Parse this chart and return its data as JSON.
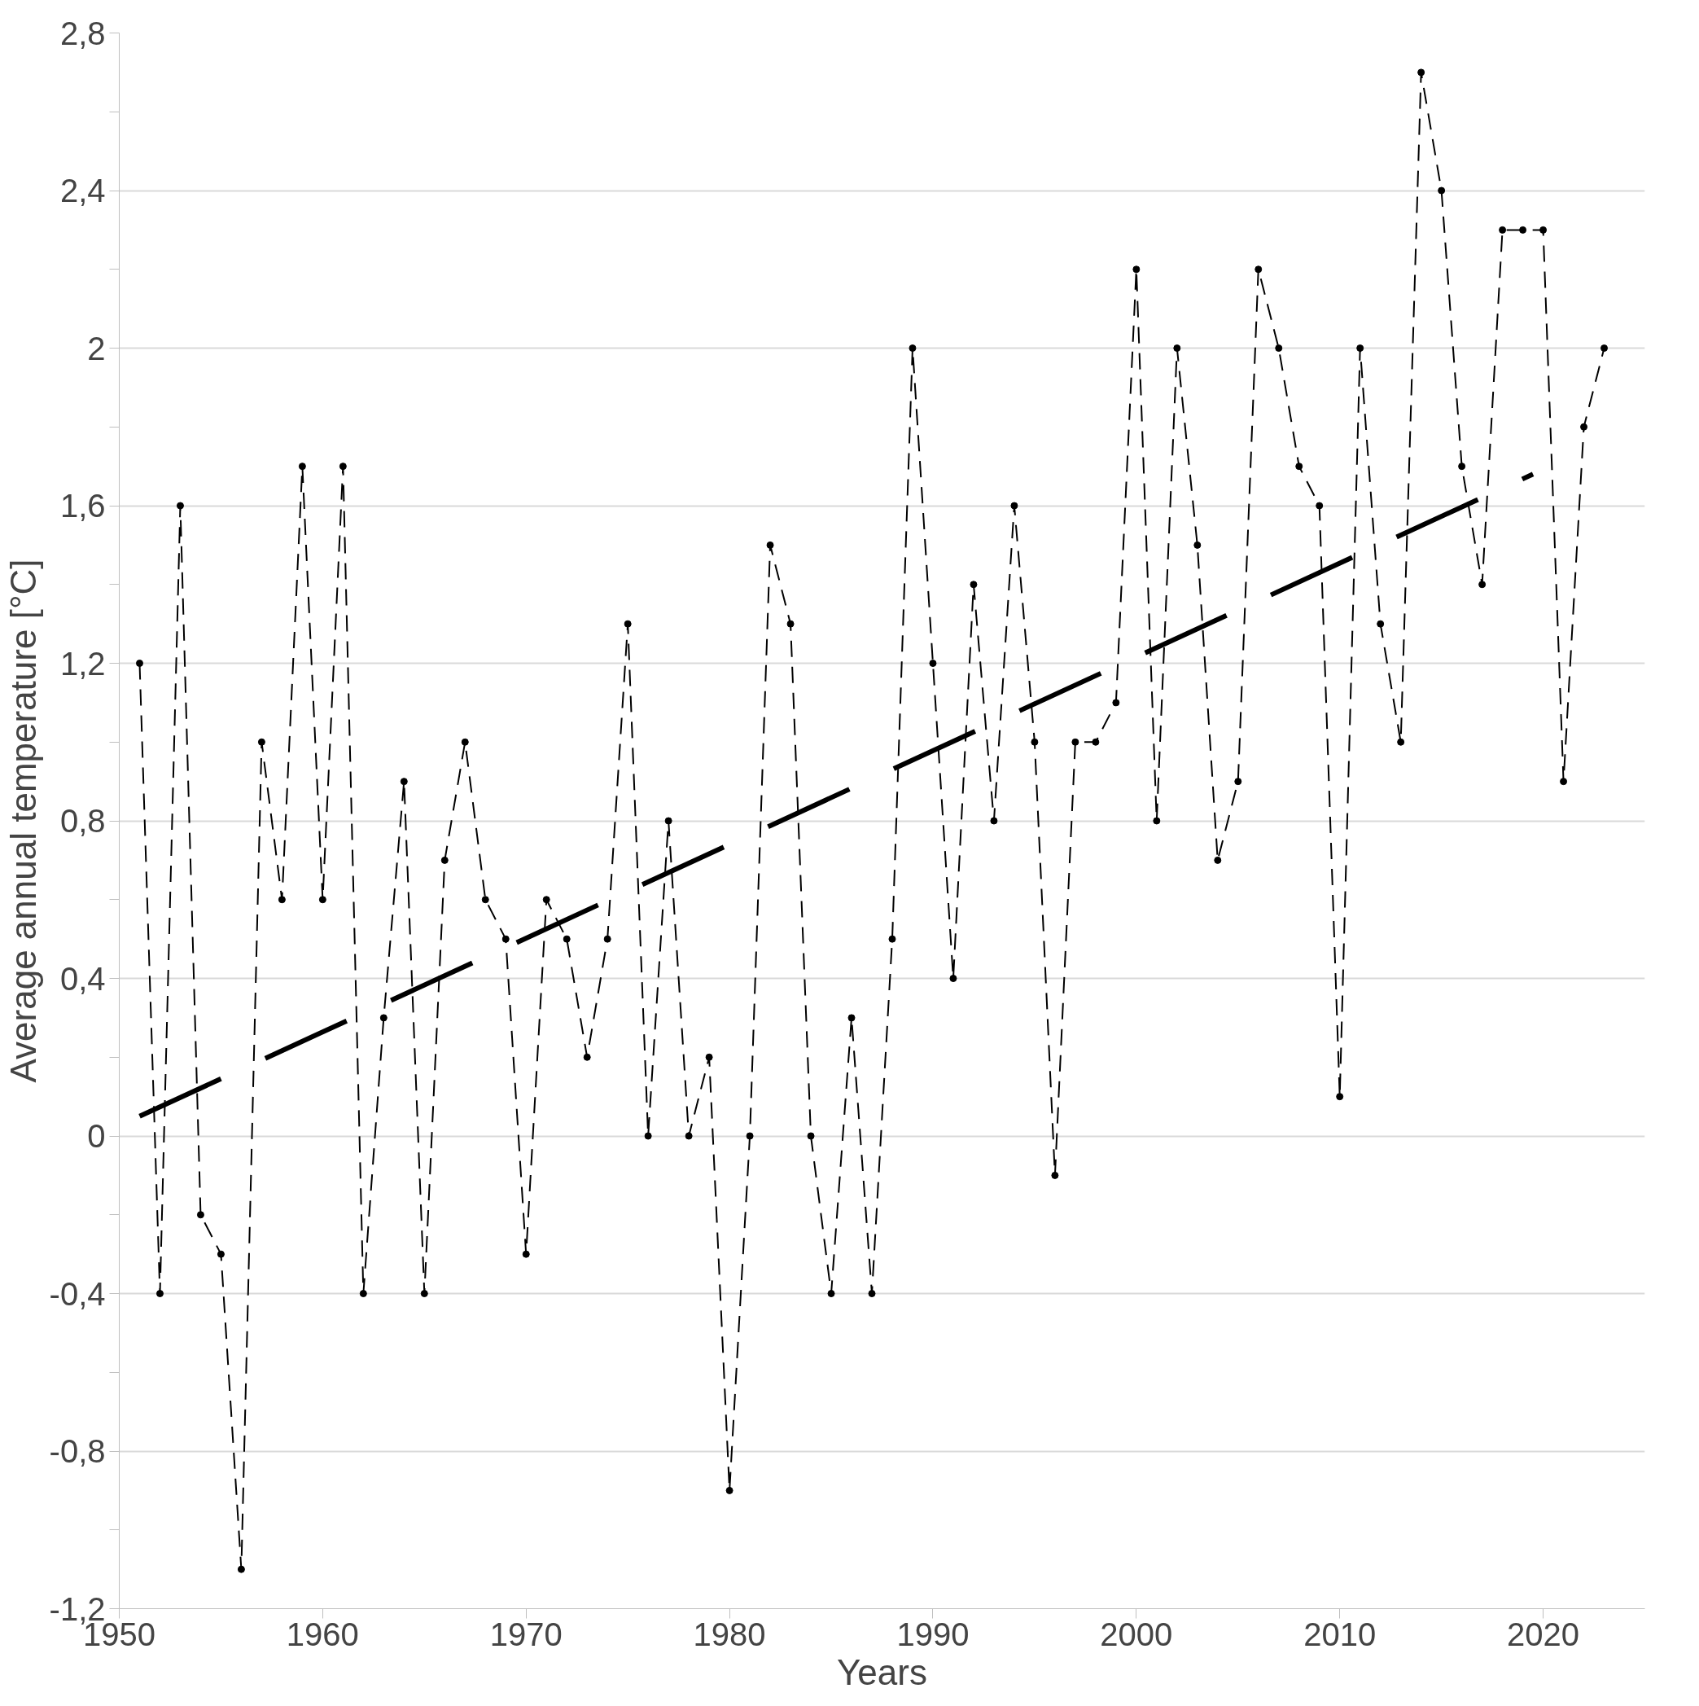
{
  "chart_data": {
    "type": "line",
    "xlabel": "Years",
    "ylabel": "Average annual temperature [°C]",
    "xlim": [
      1950,
      2025
    ],
    "xticks": [
      1950,
      1960,
      1970,
      1980,
      1990,
      2000,
      2010,
      2020
    ],
    "ylim": [
      -1.2,
      2.8
    ],
    "yticks": [
      {
        "value": -1.2,
        "label": "-1,2"
      },
      {
        "value": -1.0,
        "label": null
      },
      {
        "value": -0.8,
        "label": "-0,8"
      },
      {
        "value": -0.6,
        "label": null
      },
      {
        "value": -0.4,
        "label": "-0,4"
      },
      {
        "value": -0.2,
        "label": null
      },
      0,
      {
        "value": 0.2,
        "label": null
      },
      {
        "value": 0.4,
        "label": "0,4"
      },
      {
        "value": 0.6,
        "label": null
      },
      {
        "value": 0.8,
        "label": "0,8"
      },
      {
        "value": 1.0,
        "label": null
      },
      {
        "value": 1.2,
        "label": "1,2"
      },
      {
        "value": 1.4,
        "label": null
      },
      {
        "value": 1.6,
        "label": "1,6"
      },
      {
        "value": 1.8,
        "label": null
      },
      2,
      {
        "value": 2.2,
        "label": null
      },
      {
        "value": 2.4,
        "label": "2,4"
      },
      {
        "value": 2.6,
        "label": null
      },
      {
        "value": 2.8,
        "label": "2,8"
      }
    ],
    "grid": "y",
    "series": [
      {
        "color": "#000000",
        "line_style": "dashed",
        "marker": "circle",
        "x": [
          1951,
          1952,
          1953,
          1954,
          1955,
          1956,
          1957,
          1958,
          1959,
          1960,
          1961,
          1962,
          1963,
          1964,
          1965,
          1966,
          1967,
          1968,
          1969,
          1970,
          1971,
          1972,
          1973,
          1974,
          1975,
          1976,
          1977,
          1978,
          1979,
          1980,
          1981,
          1982,
          1983,
          1984,
          1985,
          1986,
          1987,
          1988,
          1989,
          1990,
          1991,
          1992,
          1993,
          1994,
          1995,
          1996,
          1997,
          1998,
          1999,
          2000,
          2001,
          2002,
          2003,
          2004,
          2005,
          2006,
          2007,
          2008,
          2009,
          2010,
          2011,
          2012,
          2013,
          2014,
          2015,
          2016,
          2017,
          2018,
          2019,
          2020,
          2021,
          2022,
          2023
        ],
        "values": [
          1.2,
          -0.4,
          1.6,
          -0.2,
          -0.3,
          -1.1,
          1.0,
          0.6,
          1.7,
          0.6,
          1.7,
          -0.4,
          0.3,
          0.9,
          -0.4,
          0.7,
          1.0,
          0.6,
          0.5,
          -0.3,
          0.6,
          0.5,
          0.2,
          0.5,
          1.3,
          0.0,
          0.8,
          0.0,
          0.2,
          -0.9,
          0.0,
          1.5,
          1.3,
          0.0,
          -0.4,
          0.3,
          -0.4,
          0.5,
          2.0,
          1.2,
          0.4,
          1.4,
          0.8,
          1.6,
          1.0,
          -0.1,
          1.0,
          1.0,
          1.1,
          2.2,
          0.8,
          2.0,
          1.5,
          0.7,
          0.9,
          2.2,
          2.0,
          1.7,
          1.6,
          0.1,
          2.0,
          1.3,
          1.0,
          2.7,
          2.4,
          1.7,
          1.4,
          2.3,
          2.3,
          2.3,
          0.9,
          1.8,
          2.0
        ]
      },
      {
        "color": "#000000",
        "line_style": "long_dashed",
        "marker": "none",
        "x": [
          1951,
          2019.5
        ],
        "values": [
          0.05,
          1.68
        ]
      }
    ]
  }
}
